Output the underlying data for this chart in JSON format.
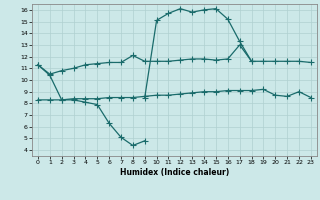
{
  "xlabel": "Humidex (Indice chaleur)",
  "background_color": "#cce8e8",
  "grid_color": "#b0d0d0",
  "line_color": "#1a6b6b",
  "xlim": [
    -0.5,
    23.5
  ],
  "ylim": [
    3.5,
    16.5
  ],
  "xticks": [
    0,
    1,
    2,
    3,
    4,
    5,
    6,
    7,
    8,
    9,
    10,
    11,
    12,
    13,
    14,
    15,
    16,
    17,
    18,
    19,
    20,
    21,
    22,
    23
  ],
  "yticks": [
    4,
    5,
    6,
    7,
    8,
    9,
    10,
    11,
    12,
    13,
    14,
    15,
    16
  ],
  "series": {
    "line_peak": {
      "x": [
        9,
        10,
        11,
        12,
        13,
        14,
        15,
        16,
        17,
        18
      ],
      "y": [
        8.5,
        15.1,
        15.7,
        16.1,
        15.8,
        16.0,
        16.1,
        15.2,
        13.3,
        11.6
      ]
    },
    "line_upper": {
      "x": [
        0,
        1,
        2,
        3,
        4,
        5,
        6,
        7,
        8,
        9,
        10,
        11,
        12,
        13,
        14,
        15,
        16,
        17,
        18,
        19,
        20,
        21,
        22,
        23
      ],
      "y": [
        11.3,
        10.5,
        10.8,
        11.0,
        11.3,
        11.4,
        11.5,
        11.5,
        12.1,
        11.6,
        11.6,
        11.6,
        11.7,
        11.8,
        11.8,
        11.7,
        11.8,
        13.0,
        11.6,
        11.6,
        11.6,
        11.6,
        11.6,
        11.5
      ]
    },
    "line_lower": {
      "x": [
        0,
        1,
        2,
        3,
        4,
        5,
        6,
        7,
        8,
        9,
        10,
        11,
        12,
        13,
        14,
        15,
        16,
        17,
        18,
        19,
        20,
        21,
        22,
        23
      ],
      "y": [
        8.3,
        8.3,
        8.3,
        8.4,
        8.4,
        8.4,
        8.5,
        8.5,
        8.5,
        8.6,
        8.7,
        8.7,
        8.8,
        8.9,
        9.0,
        9.0,
        9.1,
        9.1,
        9.1,
        9.2,
        8.7,
        8.6,
        9.0,
        8.5
      ]
    },
    "line_dip": {
      "x": [
        0,
        1,
        2,
        3,
        4,
        5,
        6,
        7,
        8,
        9
      ],
      "y": [
        11.3,
        10.4,
        8.3,
        8.3,
        8.1,
        7.9,
        6.3,
        5.1,
        4.4,
        4.8
      ]
    }
  }
}
